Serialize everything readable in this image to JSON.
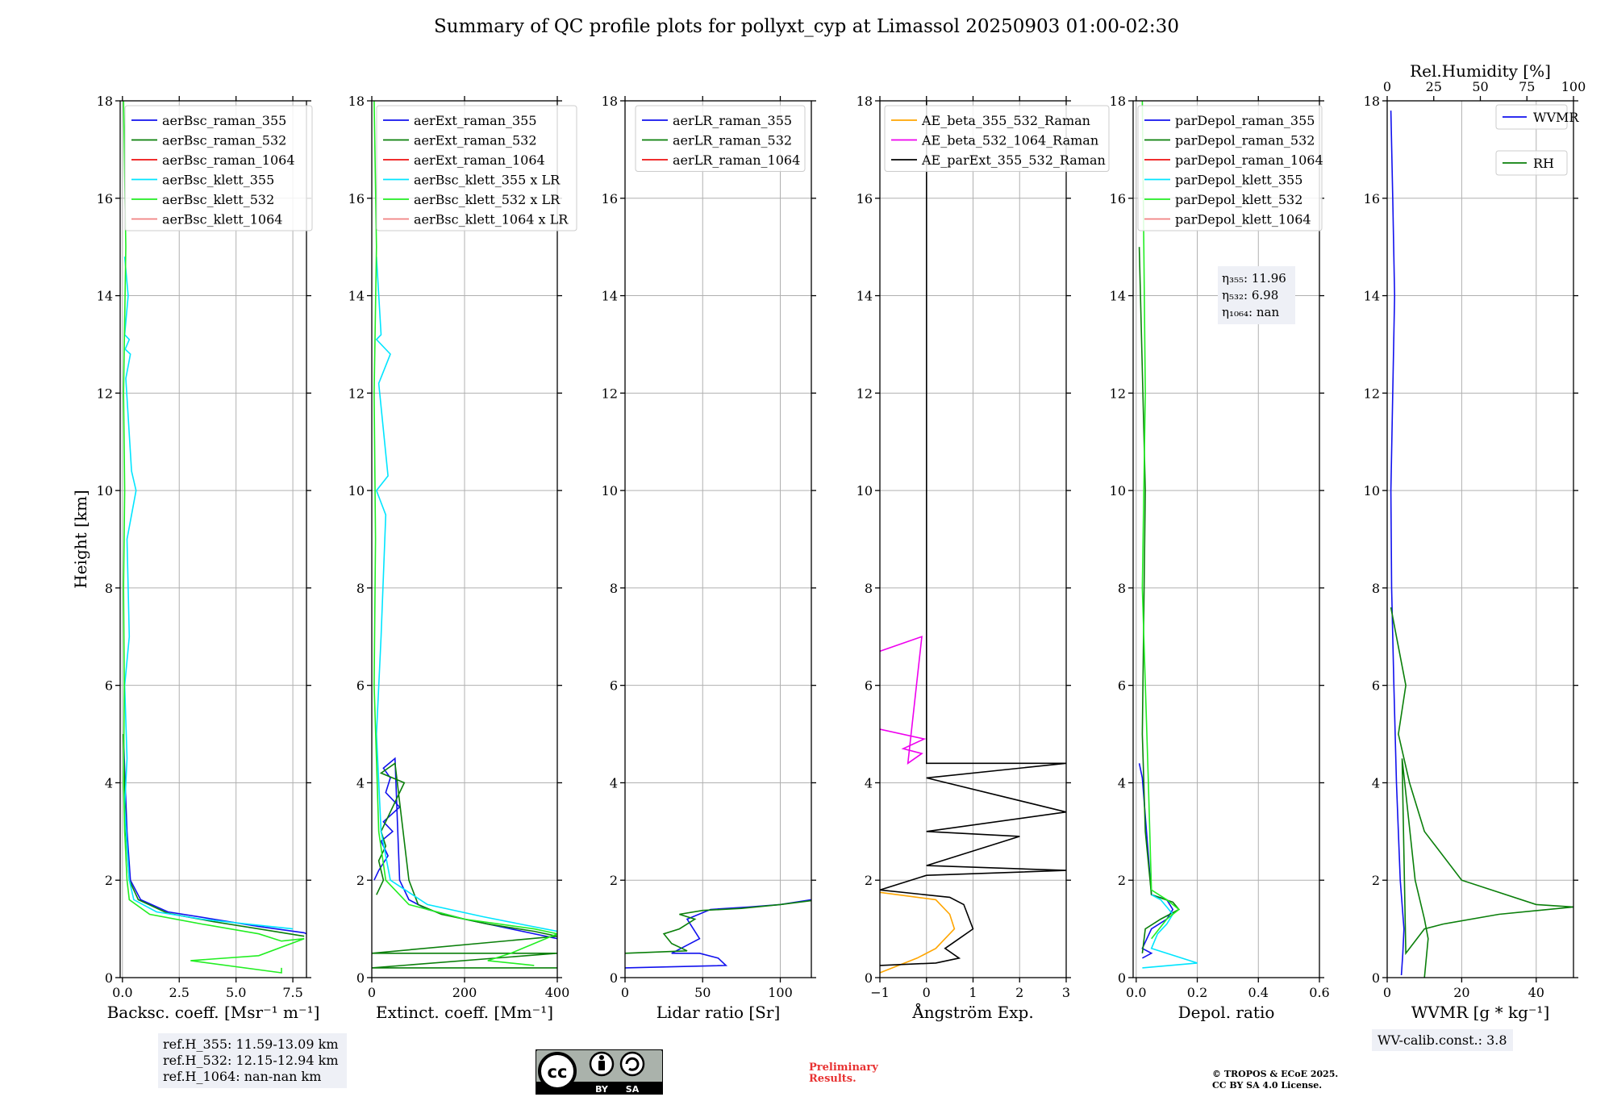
{
  "title": "Summary of QC profile plots for pollyxt_cyp at Limassol 20250903 01:00-02:30",
  "colors": {
    "blue": "#1111ee",
    "green": "#0a7f0a",
    "red": "#ee1111",
    "cyan": "#00e5ff",
    "lime": "#22ee22",
    "salmon": "#f08080",
    "orange": "#ffa500",
    "magenta": "#ee00ee",
    "black": "#000000"
  },
  "chart_data": [
    {
      "type": "line",
      "ylabel": "Height [km]",
      "xlabel": "Backsc. coeff. [Msr⁻¹ m⁻¹]",
      "xlim": [
        -0.1,
        8.1
      ],
      "ylim": [
        0,
        18
      ],
      "xticks": [
        0,
        2.5,
        5,
        7.5
      ],
      "xticklabels": [
        "0.0",
        "2.5",
        "5.0",
        "7.5"
      ],
      "legend": "top",
      "series": [
        {
          "name": "aerBsc_raman_355",
          "color": "blue",
          "x": [
            0.05,
            0.08,
            0.12,
            0.2,
            0.35,
            0.8,
            2,
            4,
            6,
            8,
            8.1
          ],
          "y": [
            5,
            4.5,
            4,
            3,
            2,
            1.6,
            1.35,
            1.2,
            1.05,
            0.92,
            0.9
          ]
        },
        {
          "name": "aerBsc_raman_532",
          "color": "green",
          "x": [
            0.04,
            0.06,
            0.1,
            0.15,
            0.3,
            0.7,
            2,
            4,
            6,
            8
          ],
          "y": [
            5,
            4.5,
            4,
            3,
            2,
            1.6,
            1.32,
            1.15,
            1.0,
            0.85
          ]
        },
        {
          "name": "aerBsc_raman_1064",
          "color": "red",
          "x": [],
          "y": []
        },
        {
          "name": "aerBsc_klett_355",
          "color": "cyan",
          "x": [
            0.1,
            0.25,
            0.1,
            0.3,
            0.12,
            0.35,
            0.15,
            0.4,
            0.6,
            0.2,
            0.3,
            0.1,
            0.2,
            0.1,
            0.3,
            0.5,
            1.5,
            3.5,
            5.5,
            7.5
          ],
          "y": [
            14.8,
            14,
            13.2,
            13.1,
            12.9,
            12.8,
            12.3,
            10.4,
            10.0,
            9,
            7,
            6,
            4.5,
            3.5,
            2,
            1.6,
            1.35,
            1.2,
            1.1,
            1.0
          ]
        },
        {
          "name": "aerBsc_klett_532",
          "color": "lime",
          "x": [
            0.05,
            0.15,
            0.05,
            0.1,
            0.05,
            0.08,
            0.05,
            0.1,
            0.2,
            0.3,
            1.2,
            3.5,
            6,
            7,
            8,
            6,
            3,
            7,
            7
          ],
          "y": [
            18,
            15,
            12,
            10,
            8,
            6,
            4,
            3,
            2,
            1.6,
            1.3,
            1.1,
            0.9,
            0.75,
            0.8,
            0.45,
            0.35,
            0.1,
            0.2
          ]
        },
        {
          "name": "aerBsc_klett_1064",
          "color": "salmon",
          "x": [],
          "y": []
        }
      ]
    },
    {
      "type": "line",
      "xlabel": "Extinct. coeff. [Mm⁻¹]",
      "xlim": [
        0,
        400
      ],
      "ylim": [
        0,
        18
      ],
      "xticks": [
        0,
        200,
        400
      ],
      "xticklabels": [
        "0",
        "200",
        "400"
      ],
      "legend": "top",
      "series": [
        {
          "name": "aerExt_raman_355",
          "color": "blue",
          "x": [
            5,
            15,
            35,
            20,
            45,
            25,
            60,
            30,
            40,
            25,
            50,
            60,
            80,
            120,
            200,
            300,
            400,
            400
          ],
          "y": [
            2,
            2.2,
            2.5,
            2.8,
            3.0,
            3.2,
            3.5,
            3.8,
            4.1,
            4.3,
            4.5,
            2,
            1.6,
            1.4,
            1.2,
            1.0,
            0.8,
            0.82
          ]
        },
        {
          "name": "aerExt_raman_532",
          "color": "green",
          "x": [
            10,
            25,
            15,
            30,
            20,
            35,
            70,
            20,
            50,
            80,
            100,
            150,
            250,
            350,
            400,
            0,
            400,
            0,
            400
          ],
          "y": [
            1.7,
            2.0,
            2.4,
            2.7,
            3.0,
            3.3,
            4.0,
            4.2,
            4.4,
            2,
            1.5,
            1.3,
            1.1,
            0.95,
            0.85,
            0.5,
            0.5,
            0.2,
            0.2
          ]
        },
        {
          "name": "aerExt_raman_1064",
          "color": "red",
          "x": [],
          "y": []
        },
        {
          "name": "aerBsc_klett_355 x LR",
          "color": "cyan",
          "x": [
            10,
            20,
            10,
            40,
            15,
            35,
            10,
            30,
            20,
            10,
            20,
            40,
            120,
            240,
            320,
            400
          ],
          "y": [
            14.8,
            13.2,
            13.1,
            12.8,
            12.2,
            10.3,
            10.0,
            9.5,
            7,
            5,
            3,
            2,
            1.5,
            1.25,
            1.1,
            0.95
          ]
        },
        {
          "name": "aerBsc_klett_532 x LR",
          "color": "lime",
          "x": [
            5,
            10,
            5,
            8,
            5,
            15,
            30,
            80,
            200,
            350,
            400,
            300,
            250,
            350
          ],
          "y": [
            18,
            15,
            12,
            9,
            6,
            3,
            2,
            1.5,
            1.2,
            1.0,
            0.9,
            0.5,
            0.35,
            0.25
          ]
        },
        {
          "name": "aerBsc_klett_1064 x LR",
          "color": "salmon",
          "x": [],
          "y": []
        }
      ]
    },
    {
      "type": "line",
      "xlabel": "Lidar ratio [Sr]",
      "xlim": [
        0,
        120
      ],
      "ylim": [
        0,
        18
      ],
      "xticks": [
        0,
        50,
        100
      ],
      "xticklabels": [
        "0",
        "50",
        "100"
      ],
      "legend": "top-right",
      "series": [
        {
          "name": "aerLR_raman_355",
          "color": "blue",
          "x": [
            0,
            65,
            60,
            48,
            30,
            48,
            40,
            55,
            80,
            100,
            120
          ],
          "y": [
            0.2,
            0.25,
            0.4,
            0.5,
            0.5,
            0.8,
            1.2,
            1.4,
            1.45,
            1.5,
            1.6
          ]
        },
        {
          "name": "aerLR_raman_532",
          "color": "green",
          "x": [
            0,
            40,
            30,
            25,
            35,
            45,
            35,
            50,
            75,
            100,
            120
          ],
          "y": [
            0.5,
            0.55,
            0.7,
            0.9,
            1.0,
            1.2,
            1.3,
            1.38,
            1.42,
            1.5,
            1.58
          ]
        },
        {
          "name": "aerLR_raman_1064",
          "color": "red",
          "x": [],
          "y": []
        }
      ]
    },
    {
      "type": "line",
      "xlabel": "Ångström Exp.",
      "xlim": [
        -1,
        3
      ],
      "ylim": [
        0,
        18
      ],
      "xticks": [
        -1,
        0,
        1,
        2,
        3
      ],
      "xticklabels": [
        "−1",
        "0",
        "1",
        "2",
        "3"
      ],
      "legend": "top",
      "series": [
        {
          "name": "AE_beta_355_532_Raman",
          "color": "orange",
          "x": [
            -1,
            0.2,
            0.5,
            0.6,
            0.4,
            0.2,
            -0.2,
            -1
          ],
          "y": [
            1.75,
            1.6,
            1.3,
            1.0,
            0.8,
            0.6,
            0.4,
            0.1
          ]
        },
        {
          "name": "AE_beta_532_1064_Raman",
          "color": "magenta",
          "x": [
            -1,
            -0.05,
            -0.5,
            -0.1,
            -0.4,
            -0.1,
            -1
          ],
          "y": [
            5.1,
            4.9,
            4.7,
            4.6,
            4.4,
            7.0,
            6.7
          ]
        },
        {
          "name": "AE_parExt_355_532_Raman",
          "color": "black",
          "x": [
            0,
            0,
            3,
            0,
            3,
            0,
            2,
            0,
            3,
            0,
            -1,
            0.5,
            0.8,
            1,
            0.7,
            0.4,
            0.7,
            0.2,
            -1
          ],
          "y": [
            18,
            4.4,
            4.4,
            4.1,
            3.4,
            3.0,
            2.9,
            2.3,
            2.2,
            2.1,
            1.8,
            1.65,
            1.5,
            1.0,
            0.8,
            0.6,
            0.4,
            0.3,
            0.25
          ]
        }
      ]
    },
    {
      "type": "line",
      "xlabel": "Depol. ratio",
      "xlim": [
        -0.01,
        0.6
      ],
      "ylim": [
        0,
        18
      ],
      "xticks": [
        0,
        0.2,
        0.4,
        0.6
      ],
      "xticklabels": [
        "0.0",
        "0.2",
        "0.4",
        "0.6"
      ],
      "legend": "top",
      "annotations": [
        "η₃₅₅: 11.96",
        "η₅₃₂: 6.98",
        "η₁₀₆₄: nan"
      ],
      "series": [
        {
          "name": "parDepol_raman_355",
          "color": "blue",
          "x": [
            0.01,
            0.02,
            0.05,
            0.1,
            0.12,
            0.1,
            0.05,
            0.02,
            0.05,
            0.02
          ],
          "y": [
            4.4,
            4.1,
            1.7,
            1.6,
            1.4,
            1.2,
            1.0,
            0.6,
            0.5,
            0.4
          ]
        },
        {
          "name": "parDepol_raman_532",
          "color": "green",
          "x": [
            0.01,
            0.03,
            0.02,
            0.03,
            0.05,
            0.12,
            0.14,
            0.08,
            0.03,
            0.02
          ],
          "y": [
            15,
            10,
            5,
            3,
            1.7,
            1.55,
            1.4,
            1.2,
            1.0,
            0.5
          ]
        },
        {
          "name": "parDepol_raman_1064",
          "color": "red",
          "x": [],
          "y": []
        },
        {
          "name": "parDepol_klett_355",
          "color": "cyan",
          "x": [
            0.05,
            0.08,
            0.1,
            0.12,
            0.1,
            0.07,
            0.05,
            0.2,
            0.02
          ],
          "y": [
            1.7,
            1.6,
            1.45,
            1.3,
            1.1,
            0.9,
            0.6,
            0.3,
            0.2
          ]
        },
        {
          "name": "parDepol_klett_532",
          "color": "lime",
          "x": [
            0.02,
            0.03,
            0.02,
            0.04,
            0.05,
            0.1,
            0.14,
            0.1,
            0.05
          ],
          "y": [
            18,
            12,
            8,
            4,
            1.8,
            1.6,
            1.4,
            1.2,
            0.8
          ]
        },
        {
          "name": "parDepol_klett_1064",
          "color": "salmon",
          "x": [],
          "y": []
        }
      ]
    },
    {
      "type": "line",
      "xlabel": "WVMR [g * kg⁻¹]",
      "xlim": [
        0,
        50
      ],
      "ylim": [
        0,
        18
      ],
      "xticks": [
        0,
        20,
        40
      ],
      "xticklabels": [
        "0",
        "20",
        "40"
      ],
      "top_axis": {
        "label": "Rel.Humidity [%]",
        "lim": [
          0,
          100
        ],
        "ticks": [
          0,
          25,
          50,
          75,
          100
        ],
        "ticklabels": [
          "0",
          "25",
          "50",
          "75",
          "100"
        ]
      },
      "legend": "top-right",
      "series": [
        {
          "name": "WVMR",
          "color": "blue",
          "axis": "bottom",
          "x": [
            1,
            1.5,
            2,
            1.5,
            1,
            1.2,
            1.8,
            2.5,
            3.5,
            4.5,
            4.2,
            3.8
          ],
          "y": [
            17.8,
            16,
            14,
            12,
            10,
            8,
            6,
            4,
            2,
            1,
            0.5,
            0.05
          ]
        },
        {
          "name": "RH",
          "color": "green",
          "axis": "top",
          "x": [
            2,
            5,
            10,
            6,
            12,
            20,
            40,
            80,
            100,
            60,
            30,
            20,
            10,
            8,
            15,
            20,
            22,
            21,
            20
          ],
          "y": [
            7.6,
            7,
            6,
            5,
            4,
            3,
            2,
            1.5,
            1.45,
            1.3,
            1.1,
            1.0,
            0.5,
            4.5,
            2,
            1.2,
            0.8,
            0.4,
            0.0
          ]
        }
      ]
    }
  ],
  "ref_box": {
    "line1": "ref.H_355: 11.59-13.09 km",
    "line2": "ref.H_532: 12.15-12.94 km",
    "line3": "ref.H_1064: nan-nan km"
  },
  "wv_calib": "WV-calib.const.: 3.8",
  "preliminary": {
    "line1": "Preliminary",
    "line2": "Results."
  },
  "copyright": {
    "line1": "© TROPOS & ECoE 2025.",
    "line2": "CC BY SA 4.0 License."
  },
  "cc_badge": {
    "cc": "cc",
    "by": "BY",
    "sa": "SA"
  }
}
